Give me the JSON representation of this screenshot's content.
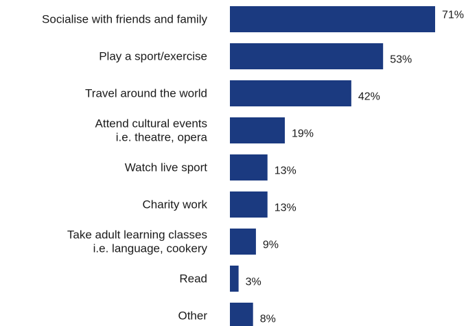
{
  "chart_data": {
    "type": "bar",
    "orientation": "horizontal",
    "categories": [
      [
        "Socialise with friends and family"
      ],
      [
        "Play a sport/exercise"
      ],
      [
        "Travel around the world"
      ],
      [
        "Attend cultural events",
        "i.e. theatre, opera"
      ],
      [
        "Watch live sport"
      ],
      [
        "Charity work"
      ],
      [
        "Take adult learning classes",
        "i.e. language, cookery"
      ],
      [
        "Read"
      ],
      [
        "Other"
      ]
    ],
    "values": [
      71,
      53,
      42,
      19,
      13,
      13,
      9,
      3,
      8
    ],
    "value_labels": [
      "71%",
      "53%",
      "42%",
      "19%",
      "13%",
      "13%",
      "9%",
      "3%",
      "8%"
    ],
    "unit": "%",
    "xlim": [
      0,
      71
    ],
    "grid": false,
    "legend": "none",
    "bar_color": "#1b3a80"
  }
}
